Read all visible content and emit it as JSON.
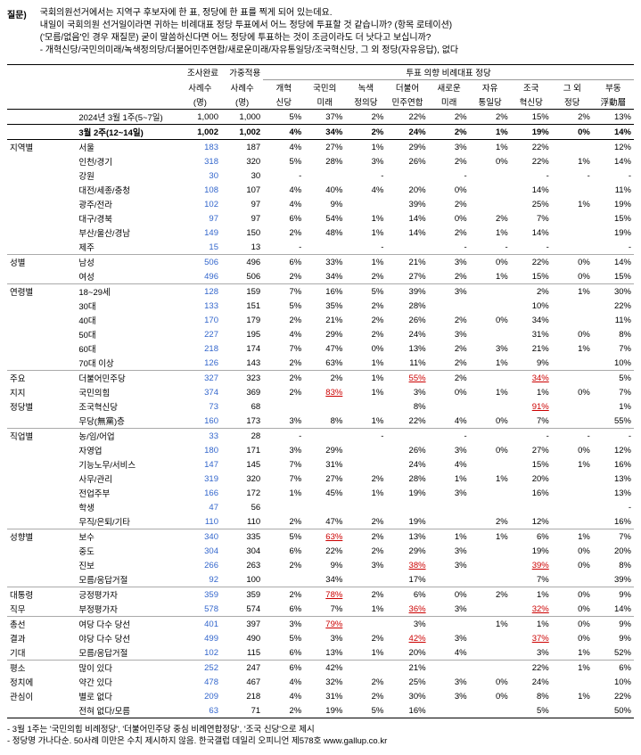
{
  "question": {
    "label": "질문)",
    "lines": [
      "국회의원선거에서는 지역구 후보자에 한 표, 정당에 한 표를 찍게 되어 있는데요.",
      "내일이 국회의원 선거일이라면 귀하는 비례대표 정당 투표에서 어느 정당에 투표할 것 같습니까? (항목 로테이션)",
      "('모름/없음'인 경우 재질문) 굳이 말씀하신다면 어느 정당에 투표하는 것이 조금이라도 더 낫다고 보십니까?",
      "- 개혁신당/국민의미래/녹색정의당/더불어민주연합/새로운미래/자유통일당/조국혁신당, 그 외 정당(자유응답), 없다"
    ]
  },
  "header": {
    "col_a": [
      "조사완료",
      "사례수",
      "(명)"
    ],
    "col_b": [
      "가중적용",
      "사례수",
      "(명)"
    ],
    "group_title": "투표 의향 비례대표 정당",
    "parties": [
      "개혁\n신당",
      "국민의\n미래",
      "녹색\n정의당",
      "더불어\n민주연합",
      "새로운\n미래",
      "자유\n통일당",
      "조국\n혁신당",
      "그 외\n정당",
      "부동\n浮動層"
    ]
  },
  "rows": [
    {
      "cat": "",
      "label": "2024년 3월 1주(5~7일)",
      "a": "1,000",
      "b": "1,000",
      "v": [
        "5%",
        "37%",
        "2%",
        "22%",
        "2%",
        "2%",
        "15%",
        "2%",
        "13%"
      ]
    },
    {
      "cat": "",
      "label": "3월 2주(12~14일)",
      "a": "1,002",
      "b": "1,002",
      "v": [
        "4%",
        "34%",
        "2%",
        "24%",
        "2%",
        "1%",
        "19%",
        "0%",
        "14%"
      ],
      "bold": true
    },
    {
      "cat": "지역별",
      "label": "서울",
      "a": "183",
      "b": "187",
      "v": [
        "4%",
        "27%",
        "1%",
        "29%",
        "3%",
        "1%",
        "22%",
        "",
        "12%"
      ],
      "blue": true
    },
    {
      "cat": "",
      "label": "인천/경기",
      "a": "318",
      "b": "320",
      "v": [
        "5%",
        "28%",
        "3%",
        "26%",
        "2%",
        "0%",
        "22%",
        "1%",
        "14%"
      ],
      "blue": true
    },
    {
      "cat": "",
      "label": "강원",
      "a": "30",
      "b": "30",
      "v": [
        "-",
        "",
        "-",
        "",
        "-",
        "",
        "-",
        "-",
        "-"
      ],
      "blue": true
    },
    {
      "cat": "",
      "label": "대전/세종/충청",
      "a": "108",
      "b": "107",
      "v": [
        "4%",
        "40%",
        "4%",
        "20%",
        "0%",
        "",
        "14%",
        "",
        "11%"
      ],
      "blue": true
    },
    {
      "cat": "",
      "label": "광주/전라",
      "a": "102",
      "b": "97",
      "v": [
        "4%",
        "9%",
        "",
        "39%",
        "2%",
        "",
        "25%",
        "1%",
        "19%"
      ],
      "blue": true
    },
    {
      "cat": "",
      "label": "대구/경북",
      "a": "97",
      "b": "97",
      "v": [
        "6%",
        "54%",
        "1%",
        "14%",
        "0%",
        "2%",
        "7%",
        "",
        "15%"
      ],
      "blue": true
    },
    {
      "cat": "",
      "label": "부산/울산/경남",
      "a": "149",
      "b": "150",
      "v": [
        "2%",
        "48%",
        "1%",
        "14%",
        "2%",
        "1%",
        "14%",
        "",
        "19%"
      ],
      "blue": true
    },
    {
      "cat": "",
      "label": "제주",
      "a": "15",
      "b": "13",
      "v": [
        "-",
        "",
        "-",
        "",
        "-",
        "-",
        "-",
        "",
        "-"
      ],
      "blue": true
    },
    {
      "cat": "성별",
      "label": "남성",
      "a": "506",
      "b": "496",
      "v": [
        "6%",
        "33%",
        "1%",
        "21%",
        "3%",
        "0%",
        "22%",
        "0%",
        "14%"
      ],
      "blue": true,
      "sec": true
    },
    {
      "cat": "",
      "label": "여성",
      "a": "496",
      "b": "506",
      "v": [
        "2%",
        "34%",
        "2%",
        "27%",
        "2%",
        "1%",
        "15%",
        "0%",
        "15%"
      ],
      "blue": true
    },
    {
      "cat": "연령별",
      "label": "18~29세",
      "a": "128",
      "b": "159",
      "v": [
        "7%",
        "16%",
        "5%",
        "39%",
        "3%",
        "",
        "2%",
        "1%",
        "30%"
      ],
      "blue": true,
      "sec": true
    },
    {
      "cat": "",
      "label": "30대",
      "a": "133",
      "b": "151",
      "v": [
        "5%",
        "35%",
        "2%",
        "28%",
        "",
        "",
        "10%",
        "",
        "22%"
      ],
      "blue": true
    },
    {
      "cat": "",
      "label": "40대",
      "a": "170",
      "b": "179",
      "v": [
        "2%",
        "21%",
        "2%",
        "26%",
        "2%",
        "0%",
        "34%",
        "",
        "11%"
      ],
      "blue": true
    },
    {
      "cat": "",
      "label": "50대",
      "a": "227",
      "b": "195",
      "v": [
        "4%",
        "29%",
        "2%",
        "24%",
        "3%",
        "",
        "31%",
        "0%",
        "8%"
      ],
      "blue": true
    },
    {
      "cat": "",
      "label": "60대",
      "a": "218",
      "b": "174",
      "v": [
        "7%",
        "47%",
        "0%",
        "13%",
        "2%",
        "3%",
        "21%",
        "1%",
        "7%"
      ],
      "blue": true
    },
    {
      "cat": "",
      "label": "70대 이상",
      "a": "126",
      "b": "143",
      "v": [
        "2%",
        "63%",
        "1%",
        "11%",
        "2%",
        "1%",
        "9%",
        "",
        "10%"
      ],
      "blue": true
    },
    {
      "cat": "주요",
      "label": "더불어민주당",
      "a": "327",
      "b": "323",
      "v": [
        "2%",
        "2%",
        "1%",
        "55%",
        "2%",
        "",
        "34%",
        "",
        "5%"
      ],
      "blue": true,
      "sec": true,
      "redidx": [
        3,
        6
      ]
    },
    {
      "cat": "지지",
      "label": "국민의힘",
      "a": "374",
      "b": "369",
      "v": [
        "2%",
        "83%",
        "1%",
        "3%",
        "0%",
        "1%",
        "1%",
        "0%",
        "7%"
      ],
      "blue": true,
      "redidx": [
        1
      ]
    },
    {
      "cat": "정당별",
      "label": "조국혁신당",
      "a": "73",
      "b": "68",
      "v": [
        "",
        "",
        "",
        "8%",
        "",
        "",
        "91%",
        "",
        "1%"
      ],
      "blue": true,
      "redidx": [
        6
      ]
    },
    {
      "cat": "",
      "label": "무당(無黨)층",
      "a": "160",
      "b": "173",
      "v": [
        "3%",
        "8%",
        "1%",
        "22%",
        "4%",
        "0%",
        "7%",
        "",
        "55%"
      ],
      "blue": true
    },
    {
      "cat": "직업별",
      "label": "농/임/어업",
      "a": "33",
      "b": "28",
      "v": [
        "-",
        "",
        "-",
        "",
        "-",
        "",
        "-",
        "-",
        "-"
      ],
      "blue": true,
      "sec": true
    },
    {
      "cat": "",
      "label": "자영업",
      "a": "180",
      "b": "171",
      "v": [
        "3%",
        "29%",
        "",
        "26%",
        "3%",
        "0%",
        "27%",
        "0%",
        "12%"
      ],
      "blue": true
    },
    {
      "cat": "",
      "label": "기능노무/서비스",
      "a": "147",
      "b": "145",
      "v": [
        "7%",
        "31%",
        "",
        "24%",
        "4%",
        "",
        "15%",
        "1%",
        "16%"
      ],
      "blue": true
    },
    {
      "cat": "",
      "label": "사무/관리",
      "a": "319",
      "b": "320",
      "v": [
        "7%",
        "27%",
        "2%",
        "28%",
        "1%",
        "1%",
        "20%",
        "",
        "13%"
      ],
      "blue": true
    },
    {
      "cat": "",
      "label": "전업주부",
      "a": "166",
      "b": "172",
      "v": [
        "1%",
        "45%",
        "1%",
        "19%",
        "3%",
        "",
        "16%",
        "",
        "13%"
      ],
      "blue": true
    },
    {
      "cat": "",
      "label": "학생",
      "a": "47",
      "b": "56",
      "v": [
        "",
        "",
        "",
        "",
        "",
        "",
        "",
        "",
        "-"
      ],
      "blue": true
    },
    {
      "cat": "",
      "label": "무직/은퇴/기타",
      "a": "110",
      "b": "110",
      "v": [
        "2%",
        "47%",
        "2%",
        "19%",
        "",
        "2%",
        "12%",
        "",
        "16%"
      ],
      "blue": true
    },
    {
      "cat": "성향별",
      "label": "보수",
      "a": "340",
      "b": "335",
      "v": [
        "5%",
        "63%",
        "2%",
        "13%",
        "1%",
        "1%",
        "6%",
        "1%",
        "7%"
      ],
      "blue": true,
      "sec": true,
      "redidx": [
        1
      ]
    },
    {
      "cat": "",
      "label": "중도",
      "a": "304",
      "b": "304",
      "v": [
        "6%",
        "22%",
        "2%",
        "29%",
        "3%",
        "",
        "19%",
        "0%",
        "20%"
      ],
      "blue": true
    },
    {
      "cat": "",
      "label": "진보",
      "a": "266",
      "b": "263",
      "v": [
        "2%",
        "9%",
        "3%",
        "38%",
        "3%",
        "",
        "39%",
        "0%",
        "8%"
      ],
      "blue": true,
      "redidx": [
        3,
        6
      ]
    },
    {
      "cat": "",
      "label": "모름/응답거절",
      "a": "92",
      "b": "100",
      "v": [
        "",
        "34%",
        "",
        "17%",
        "",
        "",
        "7%",
        "",
        "39%"
      ],
      "blue": true
    },
    {
      "cat": "대통령",
      "label": "긍정평가자",
      "a": "359",
      "b": "359",
      "v": [
        "2%",
        "78%",
        "2%",
        "6%",
        "0%",
        "2%",
        "1%",
        "0%",
        "9%"
      ],
      "blue": true,
      "sec": true,
      "redidx": [
        1
      ]
    },
    {
      "cat": "직무",
      "label": "부정평가자",
      "a": "578",
      "b": "574",
      "v": [
        "6%",
        "7%",
        "1%",
        "36%",
        "3%",
        "",
        "32%",
        "0%",
        "14%"
      ],
      "blue": true,
      "redidx": [
        3,
        6
      ]
    },
    {
      "cat": "총선",
      "label": "여당 다수 당선",
      "a": "401",
      "b": "397",
      "v": [
        "3%",
        "79%",
        "",
        "3%",
        "",
        "1%",
        "1%",
        "0%",
        "9%"
      ],
      "blue": true,
      "sec": true,
      "redidx": [
        1
      ]
    },
    {
      "cat": "결과",
      "label": "야당 다수 당선",
      "a": "499",
      "b": "490",
      "v": [
        "5%",
        "3%",
        "2%",
        "42%",
        "3%",
        "",
        "37%",
        "0%",
        "9%"
      ],
      "blue": true,
      "redidx": [
        3,
        6
      ]
    },
    {
      "cat": "기대",
      "label": "모름/응답거절",
      "a": "102",
      "b": "115",
      "v": [
        "6%",
        "13%",
        "1%",
        "20%",
        "4%",
        "",
        "3%",
        "1%",
        "52%"
      ],
      "blue": true
    },
    {
      "cat": "평소",
      "label": "많이 있다",
      "a": "252",
      "b": "247",
      "v": [
        "6%",
        "42%",
        "",
        "21%",
        "",
        "",
        "22%",
        "1%",
        "6%"
      ],
      "blue": true,
      "sec": true
    },
    {
      "cat": "정치에",
      "label": "약간 있다",
      "a": "478",
      "b": "467",
      "v": [
        "4%",
        "32%",
        "2%",
        "25%",
        "3%",
        "0%",
        "24%",
        "",
        "10%"
      ],
      "blue": true
    },
    {
      "cat": "관심이",
      "label": "별로 없다",
      "a": "209",
      "b": "218",
      "v": [
        "4%",
        "31%",
        "2%",
        "30%",
        "3%",
        "0%",
        "8%",
        "1%",
        "22%"
      ],
      "blue": true
    },
    {
      "cat": "",
      "label": "전혀 없다/모름",
      "a": "63",
      "b": "71",
      "v": [
        "2%",
        "19%",
        "5%",
        "16%",
        "",
        "",
        "5%",
        "",
        "50%"
      ],
      "blue": true,
      "last": true
    }
  ],
  "footer": [
    "- 3월 1주는 '국민의힘 비례정당', '더불어민주당 중심 비례연합정당', '조국 신당'으로 제시",
    "- 정당명 가나다순. 50사례 미만은 수치 제시하지 않음. 한국갤럽 데일리 오피니언 제578호 www.gallup.co.kr"
  ]
}
